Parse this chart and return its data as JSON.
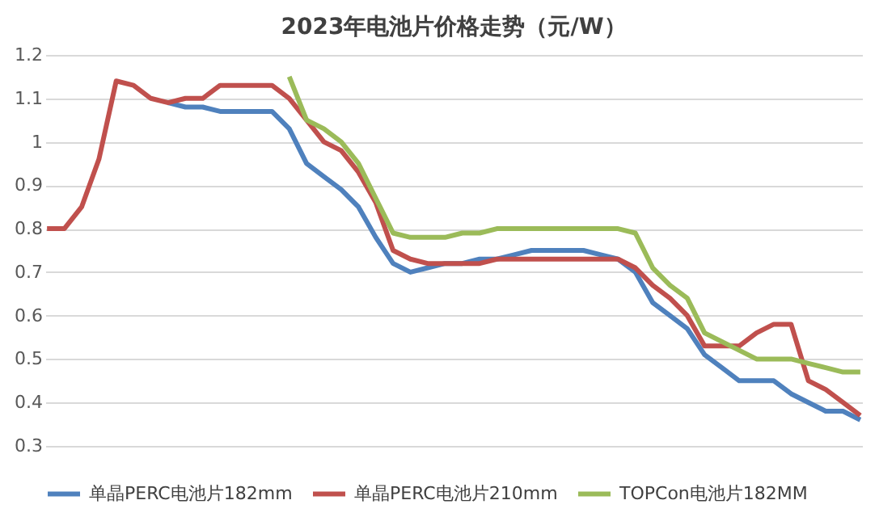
{
  "chart_data": {
    "type": "line",
    "title": "2023年电池片价格走势（元/W）",
    "categories": [
      null,
      null,
      null,
      null,
      null,
      null,
      null,
      null,
      null,
      null,
      null,
      null,
      null,
      null,
      null,
      null,
      null,
      null,
      null,
      null,
      null,
      null,
      null,
      null,
      null,
      null,
      null,
      null,
      null,
      null,
      null,
      null,
      null,
      null,
      null,
      null,
      null,
      null,
      null,
      null,
      null,
      null,
      null,
      null,
      null,
      null,
      null,
      null
    ],
    "series": [
      {
        "name": "单晶PERC电池片182mm",
        "color": "#4f81bd",
        "values": [
          null,
          null,
          null,
          null,
          null,
          null,
          null,
          1.09,
          1.08,
          1.08,
          1.07,
          1.07,
          1.07,
          1.07,
          1.03,
          0.95,
          0.92,
          0.89,
          0.85,
          0.78,
          0.72,
          0.7,
          0.71,
          0.72,
          0.72,
          0.73,
          0.73,
          0.74,
          0.75,
          0.75,
          0.75,
          0.75,
          0.74,
          0.73,
          0.7,
          0.63,
          0.6,
          0.57,
          0.51,
          0.48,
          0.45,
          0.45,
          0.45,
          0.42,
          0.4,
          0.38,
          0.38,
          0.36
        ]
      },
      {
        "name": "单晶PERC电池片210mm",
        "color": "#c0504d",
        "values": [
          0.8,
          0.8,
          0.85,
          0.96,
          1.14,
          1.13,
          1.1,
          1.09,
          1.1,
          1.1,
          1.13,
          1.13,
          1.13,
          1.13,
          1.1,
          1.05,
          1.0,
          0.98,
          0.93,
          0.86,
          0.75,
          0.73,
          0.72,
          0.72,
          0.72,
          0.72,
          0.73,
          0.73,
          0.73,
          0.73,
          0.73,
          0.73,
          0.73,
          0.73,
          0.71,
          0.67,
          0.64,
          0.6,
          0.53,
          0.53,
          0.53,
          0.56,
          0.58,
          0.58,
          0.45,
          0.43,
          0.4,
          0.37
        ]
      },
      {
        "name": "TOPCon电池片182MM",
        "color": "#9bbb59",
        "values": [
          null,
          null,
          null,
          null,
          null,
          null,
          null,
          null,
          null,
          null,
          null,
          null,
          null,
          null,
          1.15,
          1.05,
          1.03,
          1.0,
          0.95,
          0.87,
          0.79,
          0.78,
          0.78,
          0.78,
          0.79,
          0.79,
          0.8,
          0.8,
          0.8,
          0.8,
          0.8,
          0.8,
          0.8,
          0.8,
          0.79,
          0.71,
          0.67,
          0.64,
          0.56,
          0.54,
          0.52,
          0.5,
          0.5,
          0.5,
          0.49,
          0.48,
          0.47,
          0.47
        ]
      }
    ],
    "ylim": [
      0.3,
      1.2
    ],
    "yticks": [
      0.3,
      0.4,
      0.5,
      0.6,
      0.7,
      0.8,
      0.9,
      1,
      1.1,
      1.2
    ],
    "grid": "y",
    "legend": "bottom",
    "tick_labels": "y",
    "line_style": "solid"
  }
}
